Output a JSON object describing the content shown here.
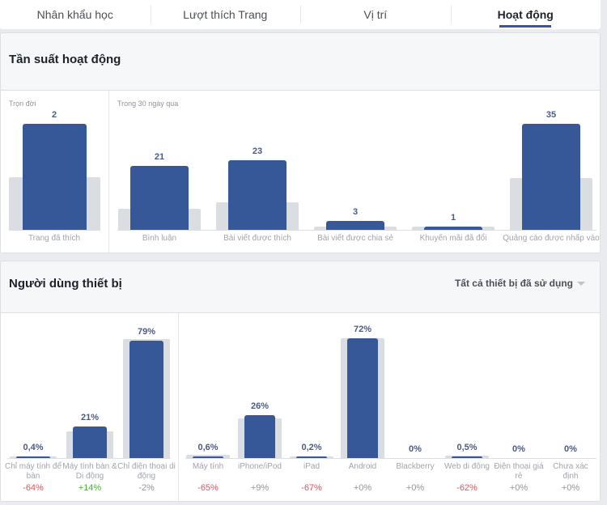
{
  "tabs": [
    {
      "label": "Nhân khẩu học"
    },
    {
      "label": "Lượt thích Trang"
    },
    {
      "label": "Vị trí"
    },
    {
      "label": "Hoạt động",
      "active": true
    }
  ],
  "activity": {
    "title": "Tần suất hoạt động",
    "lifetime": {
      "label": "Trọn đời",
      "bars": [
        {
          "category": "Trang đã thích",
          "value": 2,
          "benchmark": 1
        }
      ]
    },
    "last30": {
      "label": "Trong 30 ngày qua",
      "bars": [
        {
          "category": "Bình luận",
          "value": 21,
          "benchmark": 7
        },
        {
          "category": "Bài viết được thích",
          "value": 23,
          "benchmark": 9
        },
        {
          "category": "Bài viết được chia sẻ",
          "value": 3,
          "benchmark": 1
        },
        {
          "category": "Khuyến mãi đã đổi",
          "value": 1,
          "benchmark": 1
        },
        {
          "category": "Quảng cáo được nhấp vào",
          "value": 35,
          "benchmark": 17
        }
      ]
    }
  },
  "devices": {
    "title": "Người dùng thiết bị",
    "filter": "Tất cả thiết bị đã sử dụng",
    "colors": {
      "bar": "#365899",
      "benchmark": "#dadde1",
      "negative": "#e0535f",
      "positive": "#42b72a",
      "neutral": "#90949c"
    },
    "type": {
      "bars": [
        {
          "category": "Chỉ máy tính để bàn",
          "value": 0.4,
          "label": "0,4%",
          "change": "-64%",
          "trend": "negative",
          "benchmark": 1
        },
        {
          "category": "Máy tính bàn & Di động",
          "value": 21,
          "label": "21%",
          "change": "+14%",
          "trend": "positive",
          "benchmark": 18
        },
        {
          "category": "Chỉ điện thoại di động",
          "value": 79,
          "label": "79%",
          "change": "-2%",
          "trend": "neutral",
          "benchmark": 80
        }
      ]
    },
    "os": {
      "bars": [
        {
          "category": "Máy tính",
          "value": 0.6,
          "label": "0,6%",
          "change": "-65%",
          "trend": "negative",
          "benchmark": 2
        },
        {
          "category": "iPhone/iPod",
          "value": 26,
          "label": "26%",
          "change": "+9%",
          "trend": "neutral",
          "benchmark": 24
        },
        {
          "category": "iPad",
          "value": 0.2,
          "label": "0,2%",
          "change": "-67%",
          "trend": "negative",
          "benchmark": 0.5
        },
        {
          "category": "Android",
          "value": 72,
          "label": "72%",
          "change": "+0%",
          "trend": "neutral",
          "benchmark": 72
        },
        {
          "category": "Blackberry",
          "value": 0,
          "label": "0%",
          "change": "+0%",
          "trend": "neutral",
          "benchmark": 0
        },
        {
          "category": "Web di động",
          "value": 0.5,
          "label": "0,5%",
          "change": "-62%",
          "trend": "negative",
          "benchmark": 1.5
        },
        {
          "category": "Điện thoại giá rẻ",
          "value": 0,
          "label": "0%",
          "change": "+0%",
          "trend": "neutral",
          "benchmark": 0
        },
        {
          "category": "Chưa xác định",
          "value": 0,
          "label": "0%",
          "change": "+0%",
          "trend": "neutral",
          "benchmark": 0
        }
      ]
    }
  }
}
